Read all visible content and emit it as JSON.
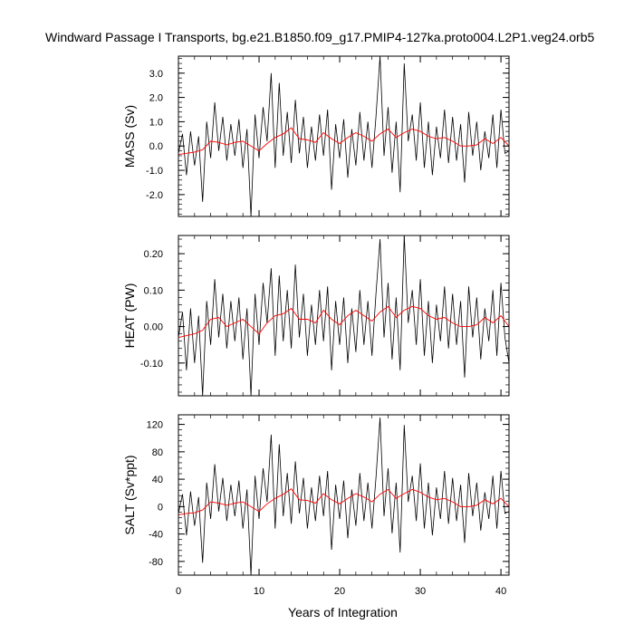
{
  "title": "Windward Passage I Transports, bg.e21.B1850.f09_g17.PMIP4-127ka.proto004.L2P1.veg24.orb5",
  "colors": {
    "raw": "#000000",
    "smooth": "#ff0000",
    "frame": "#000000"
  },
  "chart_data": [
    {
      "type": "line",
      "ylabel": "MASS (Sv)",
      "xlabel": "",
      "xlim": [
        0,
        41
      ],
      "ylim": [
        -2.9,
        3.7
      ],
      "yticks": [
        -2.0,
        -1.0,
        0.0,
        1.0,
        2.0,
        3.0
      ],
      "ytick_labels": [
        "-2.0",
        "-1.0",
        "0.0",
        "1.0",
        "2.0",
        "3.0"
      ],
      "series": [
        {
          "x": [
            0,
            0.5,
            1,
            1.5,
            2,
            2.5,
            3,
            3.5,
            4,
            4.5,
            5,
            5.5,
            6,
            6.5,
            7,
            7.5,
            8,
            8.5,
            9,
            9.5,
            10,
            10.5,
            11,
            11.5,
            12,
            12.5,
            13,
            13.5,
            14,
            14.5,
            15,
            15.5,
            16,
            16.5,
            17,
            17.5,
            18,
            18.5,
            19,
            19.5,
            20,
            20.5,
            21,
            21.5,
            22,
            22.5,
            23,
            23.5,
            24,
            24.5,
            25,
            25.5,
            26,
            26.5,
            27,
            27.5,
            28,
            28.5,
            29,
            29.5,
            30,
            30.5,
            31,
            31.5,
            32,
            32.5,
            33,
            33.5,
            34,
            34.5,
            35,
            35.5,
            36,
            36.5,
            37,
            37.5,
            38,
            38.5,
            39,
            39.5,
            40,
            40.5,
            41
          ],
          "y": [
            -0.3,
            0.5,
            -1.2,
            0.6,
            -0.8,
            0.4,
            -2.3,
            1.0,
            -0.5,
            1.8,
            -0.2,
            1.2,
            -0.6,
            0.9,
            -0.4,
            1.1,
            -0.9,
            0.7,
            -2.9,
            1.3,
            -0.5,
            1.6,
            0.2,
            3.0,
            -0.9,
            2.6,
            -0.4,
            1.4,
            -0.7,
            1.9,
            -0.3,
            1.2,
            -0.9,
            0.8,
            -0.6,
            1.3,
            -0.4,
            1.5,
            -1.8,
            0.9,
            -0.5,
            1.1,
            -1.3,
            0.7,
            -0.8,
            1.4,
            -0.6,
            1.0,
            -0.9,
            1.2,
            3.7,
            -0.4,
            1.6,
            -1.1,
            1.0,
            -1.9,
            3.4,
            0.2,
            1.3,
            -0.6,
            1.8,
            -0.9,
            1.0,
            -1.2,
            0.8,
            -0.5,
            1.5,
            -0.7,
            1.2,
            -0.6,
            0.9,
            -1.5,
            1.4,
            -0.4,
            1.0,
            -1.0,
            0.6,
            -0.5,
            1.3,
            -0.9,
            1.5,
            -0.3,
            -0.2
          ]
        },
        {
          "x": [
            0,
            1,
            2,
            3,
            4,
            5,
            6,
            7,
            8,
            9,
            10,
            11,
            12,
            13,
            14,
            15,
            16,
            17,
            18,
            19,
            20,
            21,
            22,
            23,
            24,
            25,
            26,
            27,
            28,
            29,
            30,
            31,
            32,
            33,
            34,
            35,
            36,
            37,
            38,
            39,
            40,
            41
          ],
          "y": [
            -0.35,
            -0.3,
            -0.25,
            -0.15,
            0.2,
            0.15,
            0.05,
            0.15,
            0.2,
            0.0,
            -0.2,
            0.1,
            0.35,
            0.5,
            0.75,
            0.3,
            0.25,
            0.15,
            0.55,
            0.3,
            0.1,
            0.35,
            0.55,
            0.4,
            0.2,
            0.5,
            0.7,
            0.35,
            0.55,
            0.7,
            0.6,
            0.4,
            0.3,
            0.35,
            0.2,
            0.0,
            0.0,
            0.05,
            0.3,
            0.1,
            0.35,
            0.0
          ]
        }
      ]
    },
    {
      "type": "line",
      "ylabel": "HEAT (PW)",
      "xlabel": "",
      "xlim": [
        0,
        41
      ],
      "ylim": [
        -0.19,
        0.25
      ],
      "yticks": [
        -0.1,
        0.0,
        0.1,
        0.2
      ],
      "ytick_labels": [
        "-0.10",
        "0.00",
        "0.10",
        "0.20"
      ],
      "series": [
        {
          "x": [
            0,
            0.5,
            1,
            1.5,
            2,
            2.5,
            3,
            3.5,
            4,
            4.5,
            5,
            5.5,
            6,
            6.5,
            7,
            7.5,
            8,
            8.5,
            9,
            9.5,
            10,
            10.5,
            11,
            11.5,
            12,
            12.5,
            13,
            13.5,
            14,
            14.5,
            15,
            15.5,
            16,
            16.5,
            17,
            17.5,
            18,
            18.5,
            19,
            19.5,
            20,
            20.5,
            21,
            21.5,
            22,
            22.5,
            23,
            23.5,
            24,
            24.5,
            25,
            25.5,
            26,
            26.5,
            27,
            27.5,
            28,
            28.5,
            29,
            29.5,
            30,
            30.5,
            31,
            31.5,
            32,
            32.5,
            33,
            33.5,
            34,
            34.5,
            35,
            35.5,
            36,
            36.5,
            37,
            37.5,
            38,
            38.5,
            39,
            39.5,
            40,
            40.5,
            41
          ],
          "y": [
            -0.03,
            0.04,
            -0.12,
            0.05,
            -0.1,
            0.03,
            -0.19,
            0.07,
            -0.05,
            0.13,
            -0.03,
            0.09,
            -0.06,
            0.07,
            -0.04,
            0.08,
            -0.09,
            0.05,
            -0.19,
            0.09,
            -0.05,
            0.12,
            0.01,
            0.16,
            -0.08,
            0.14,
            -0.04,
            0.1,
            -0.06,
            0.17,
            -0.03,
            0.09,
            -0.08,
            0.06,
            -0.05,
            0.1,
            -0.04,
            0.11,
            -0.12,
            0.07,
            -0.05,
            0.08,
            -0.1,
            0.05,
            -0.07,
            0.1,
            -0.05,
            0.07,
            -0.08,
            0.09,
            0.24,
            -0.03,
            0.12,
            -0.09,
            0.08,
            -0.12,
            0.25,
            0.01,
            0.1,
            -0.05,
            0.13,
            -0.08,
            0.07,
            -0.1,
            0.06,
            -0.04,
            0.11,
            -0.06,
            0.09,
            -0.05,
            0.07,
            -0.14,
            0.11,
            -0.03,
            0.08,
            -0.09,
            0.05,
            -0.04,
            0.1,
            -0.08,
            0.12,
            -0.03,
            -0.1
          ]
        },
        {
          "x": [
            0,
            1,
            2,
            3,
            4,
            5,
            6,
            7,
            8,
            9,
            10,
            11,
            12,
            13,
            14,
            15,
            16,
            17,
            18,
            19,
            20,
            21,
            22,
            23,
            24,
            25,
            26,
            27,
            28,
            29,
            30,
            31,
            32,
            33,
            34,
            35,
            36,
            37,
            38,
            39,
            40,
            41
          ],
          "y": [
            -0.03,
            -0.025,
            -0.02,
            -0.01,
            0.02,
            0.025,
            0.0,
            0.01,
            0.02,
            0.0,
            -0.02,
            0.01,
            0.03,
            0.035,
            0.05,
            0.02,
            0.02,
            0.01,
            0.045,
            0.02,
            0.005,
            0.03,
            0.045,
            0.03,
            0.015,
            0.04,
            0.055,
            0.025,
            0.045,
            0.055,
            0.05,
            0.03,
            0.02,
            0.025,
            0.01,
            0.0,
            0.0,
            0.005,
            0.025,
            0.01,
            0.03,
            0.0
          ]
        }
      ]
    },
    {
      "type": "line",
      "ylabel": "SALT (Sv*ppt)",
      "xlabel": "Years of Integration",
      "xlim": [
        0,
        41
      ],
      "ylim": [
        -100,
        134
      ],
      "yticks": [
        -80,
        -40,
        0,
        40,
        80,
        120
      ],
      "ytick_labels": [
        "-80",
        "-40",
        "0",
        "40",
        "80",
        "120"
      ],
      "xticks": [
        0,
        10,
        20,
        30,
        40
      ],
      "xtick_labels": [
        "0",
        "10",
        "20",
        "30",
        "40"
      ],
      "series": [
        {
          "x": [
            0,
            0.5,
            1,
            1.5,
            2,
            2.5,
            3,
            3.5,
            4,
            4.5,
            5,
            5.5,
            6,
            6.5,
            7,
            7.5,
            8,
            8.5,
            9,
            9.5,
            10,
            10.5,
            11,
            11.5,
            12,
            12.5,
            13,
            13.5,
            14,
            14.5,
            15,
            15.5,
            16,
            16.5,
            17,
            17.5,
            18,
            18.5,
            19,
            19.5,
            20,
            20.5,
            21,
            21.5,
            22,
            22.5,
            23,
            23.5,
            24,
            24.5,
            25,
            25.5,
            26,
            26.5,
            27,
            27.5,
            28,
            28.5,
            29,
            29.5,
            30,
            30.5,
            31,
            31.5,
            32,
            32.5,
            33,
            33.5,
            34,
            34.5,
            35,
            35.5,
            36,
            36.5,
            37,
            37.5,
            38,
            38.5,
            39,
            39.5,
            40,
            40.5,
            41
          ],
          "y": [
            -10,
            18,
            -42,
            22,
            -28,
            14,
            -82,
            35,
            -18,
            62,
            -7,
            42,
            -21,
            32,
            -14,
            38,
            -32,
            25,
            -100,
            45,
            -18,
            56,
            7,
            105,
            -32,
            91,
            -14,
            49,
            -25,
            66,
            -10,
            42,
            -32,
            28,
            -21,
            45,
            -14,
            52,
            -63,
            32,
            -18,
            38,
            -46,
            25,
            -28,
            49,
            -21,
            35,
            -32,
            42,
            130,
            -14,
            56,
            -39,
            35,
            -67,
            119,
            7,
            45,
            -21,
            63,
            -32,
            35,
            -42,
            28,
            -18,
            52,
            -25,
            42,
            -21,
            32,
            -53,
            49,
            -14,
            35,
            -35,
            21,
            -18,
            45,
            -32,
            52,
            -10,
            -7
          ]
        },
        {
          "x": [
            0,
            1,
            2,
            3,
            4,
            5,
            6,
            7,
            8,
            9,
            10,
            11,
            12,
            13,
            14,
            15,
            16,
            17,
            18,
            19,
            20,
            21,
            22,
            23,
            24,
            25,
            26,
            27,
            28,
            29,
            30,
            31,
            32,
            33,
            34,
            35,
            36,
            37,
            38,
            39,
            40,
            41
          ],
          "y": [
            -12,
            -10,
            -9,
            -5,
            7,
            5,
            2,
            5,
            7,
            0,
            -7,
            4,
            12,
            18,
            26,
            10,
            9,
            5,
            19,
            10,
            4,
            12,
            19,
            14,
            7,
            18,
            25,
            12,
            19,
            25,
            21,
            14,
            10,
            12,
            7,
            0,
            0,
            2,
            10,
            4,
            12,
            0
          ]
        }
      ]
    }
  ]
}
